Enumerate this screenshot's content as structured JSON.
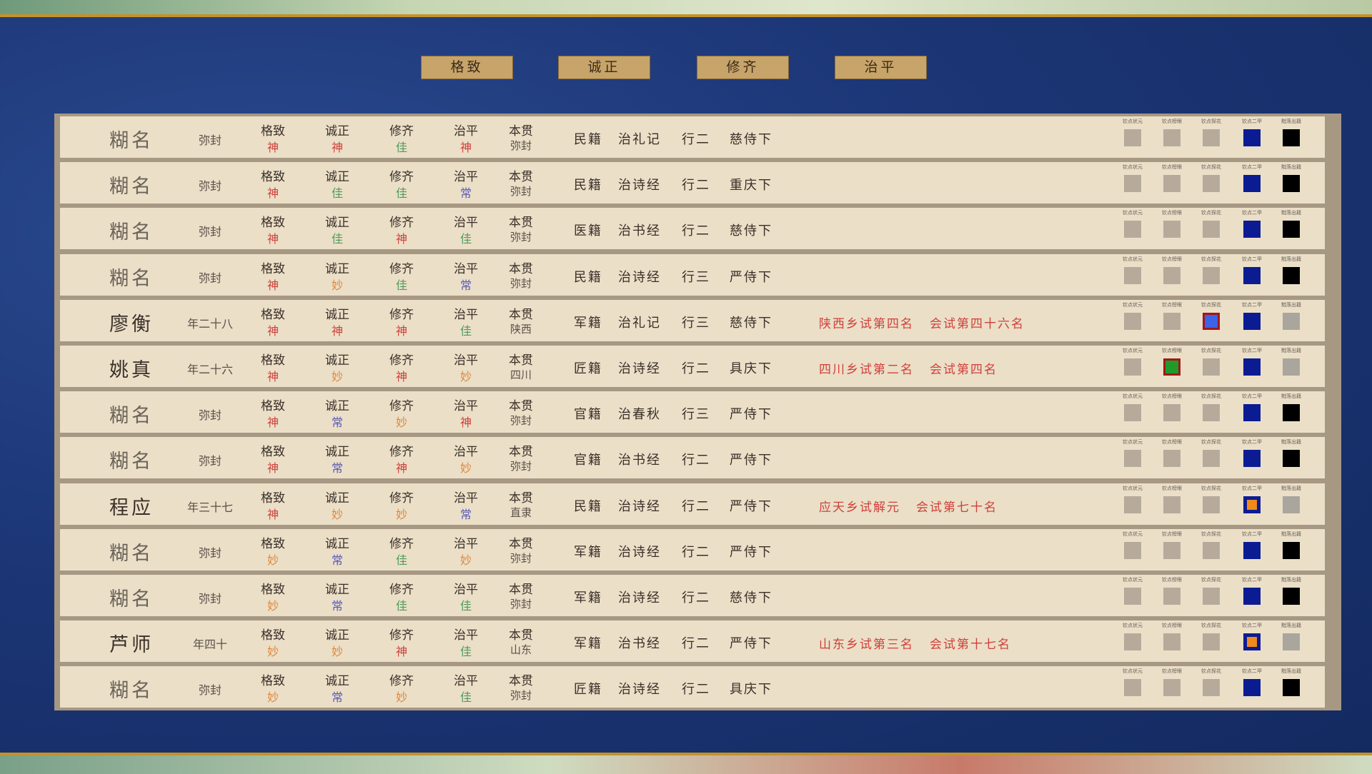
{
  "tabs": [
    "格致",
    "诚正",
    "修齐",
    "治平"
  ],
  "origin_label": "本贯",
  "box_labels": [
    "钦点状元",
    "钦点榜眼",
    "钦点探花",
    "钦点二甲",
    "黜落出籍"
  ],
  "grade_colors": {
    "神": "#d0403a",
    "佳": "#4f9a5a",
    "妙": "#e0873a",
    "常": "#5a5ab8"
  },
  "box_styles": {
    "gray": {
      "fill": "#b6ab9b",
      "border": "#b6ab9b",
      "inner": null
    },
    "pale": {
      "fill": "#aaa69d",
      "border": "#aaa69d",
      "inner": null
    },
    "blue": {
      "fill": "#0b1c92",
      "border": "#0b1c92",
      "inner": null
    },
    "black": {
      "fill": "#000000",
      "border": "#000000",
      "inner": null
    },
    "red-blue": {
      "fill": "#3d63e8",
      "border": "#a01818",
      "inner": null
    },
    "red-green": {
      "fill": "#1f9a2a",
      "border": "#a01818",
      "inner": null
    },
    "blue-orange": {
      "fill": "#0b1c92",
      "border": "#0b1c92",
      "inner": "#f08a1a"
    }
  },
  "rows": [
    {
      "name": "糊名",
      "age": "弥封",
      "grades": [
        "神",
        "神",
        "佳",
        "神"
      ],
      "origin": "弥封",
      "registry": "民籍",
      "classic": "治礼记",
      "rank": "行二",
      "family": "慈侍下",
      "exam": [],
      "boxes": [
        "gray",
        "gray",
        "gray",
        "blue",
        "black"
      ]
    },
    {
      "name": "糊名",
      "age": "弥封",
      "grades": [
        "神",
        "佳",
        "佳",
        "常"
      ],
      "origin": "弥封",
      "registry": "民籍",
      "classic": "治诗经",
      "rank": "行二",
      "family": "重庆下",
      "exam": [],
      "boxes": [
        "gray",
        "gray",
        "gray",
        "blue",
        "black"
      ]
    },
    {
      "name": "糊名",
      "age": "弥封",
      "grades": [
        "神",
        "佳",
        "神",
        "佳"
      ],
      "origin": "弥封",
      "registry": "医籍",
      "classic": "治书经",
      "rank": "行二",
      "family": "慈侍下",
      "exam": [],
      "boxes": [
        "gray",
        "gray",
        "gray",
        "blue",
        "black"
      ]
    },
    {
      "name": "糊名",
      "age": "弥封",
      "grades": [
        "神",
        "妙",
        "佳",
        "常"
      ],
      "origin": "弥封",
      "registry": "民籍",
      "classic": "治诗经",
      "rank": "行三",
      "family": "严侍下",
      "exam": [],
      "boxes": [
        "gray",
        "gray",
        "gray",
        "blue",
        "black"
      ]
    },
    {
      "name": "廖衡",
      "age": "年二十八",
      "grades": [
        "神",
        "神",
        "神",
        "佳"
      ],
      "origin": "陕西",
      "registry": "军籍",
      "classic": "治礼记",
      "rank": "行三",
      "family": "慈侍下",
      "exam": [
        "陕西乡试第四名",
        "会试第四十六名"
      ],
      "boxes": [
        "gray",
        "gray",
        "red-blue",
        "blue",
        "pale"
      ]
    },
    {
      "name": "姚真",
      "age": "年二十六",
      "grades": [
        "神",
        "妙",
        "神",
        "妙"
      ],
      "origin": "四川",
      "registry": "匠籍",
      "classic": "治诗经",
      "rank": "行二",
      "family": "具庆下",
      "exam": [
        "四川乡试第二名",
        "会试第四名"
      ],
      "boxes": [
        "gray",
        "red-green",
        "gray",
        "blue",
        "pale"
      ]
    },
    {
      "name": "糊名",
      "age": "弥封",
      "grades": [
        "神",
        "常",
        "妙",
        "神"
      ],
      "origin": "弥封",
      "registry": "官籍",
      "classic": "治春秋",
      "rank": "行三",
      "family": "严侍下",
      "exam": [],
      "boxes": [
        "gray",
        "gray",
        "gray",
        "blue",
        "black"
      ]
    },
    {
      "name": "糊名",
      "age": "弥封",
      "grades": [
        "神",
        "常",
        "神",
        "妙"
      ],
      "origin": "弥封",
      "registry": "官籍",
      "classic": "治书经",
      "rank": "行二",
      "family": "严侍下",
      "exam": [],
      "boxes": [
        "gray",
        "gray",
        "gray",
        "blue",
        "black"
      ]
    },
    {
      "name": "程应",
      "age": "年三十七",
      "grades": [
        "神",
        "妙",
        "妙",
        "常"
      ],
      "origin": "直隶",
      "registry": "民籍",
      "classic": "治诗经",
      "rank": "行二",
      "family": "严侍下",
      "exam": [
        "应天乡试解元",
        "会试第七十名"
      ],
      "boxes": [
        "gray",
        "gray",
        "gray",
        "blue-orange",
        "pale"
      ]
    },
    {
      "name": "糊名",
      "age": "弥封",
      "grades": [
        "妙",
        "常",
        "佳",
        "妙"
      ],
      "origin": "弥封",
      "registry": "军籍",
      "classic": "治诗经",
      "rank": "行二",
      "family": "严侍下",
      "exam": [],
      "boxes": [
        "gray",
        "gray",
        "gray",
        "blue",
        "black"
      ]
    },
    {
      "name": "糊名",
      "age": "弥封",
      "grades": [
        "妙",
        "常",
        "佳",
        "佳"
      ],
      "origin": "弥封",
      "registry": "军籍",
      "classic": "治诗经",
      "rank": "行二",
      "family": "慈侍下",
      "exam": [],
      "boxes": [
        "gray",
        "gray",
        "gray",
        "blue",
        "black"
      ]
    },
    {
      "name": "芦师",
      "age": "年四十",
      "grades": [
        "妙",
        "妙",
        "神",
        "佳"
      ],
      "origin": "山东",
      "registry": "军籍",
      "classic": "治书经",
      "rank": "行二",
      "family": "严侍下",
      "exam": [
        "山东乡试第三名",
        "会试第十七名"
      ],
      "boxes": [
        "gray",
        "gray",
        "gray",
        "blue-orange",
        "pale"
      ]
    },
    {
      "name": "糊名",
      "age": "弥封",
      "grades": [
        "妙",
        "常",
        "妙",
        "佳"
      ],
      "origin": "弥封",
      "registry": "匠籍",
      "classic": "治诗经",
      "rank": "行二",
      "family": "具庆下",
      "exam": [],
      "boxes": [
        "gray",
        "gray",
        "gray",
        "blue",
        "black"
      ]
    }
  ]
}
